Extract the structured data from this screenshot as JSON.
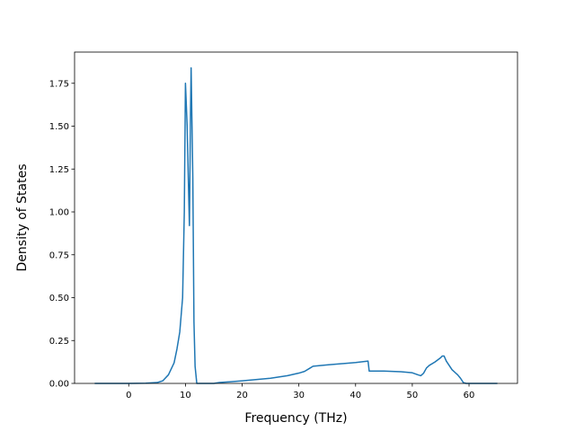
{
  "chart_data": {
    "type": "line",
    "x_label": "Frequency (THz)",
    "y_label": "Density of States",
    "color": "#1f77b4",
    "x": [
      -6,
      0,
      3,
      5,
      6,
      7,
      8,
      8.5,
      9,
      9.5,
      9.8,
      10,
      10.3,
      10.5,
      10.7,
      10.9,
      11,
      11.3,
      11.5,
      11.7,
      12,
      15,
      16,
      20,
      25,
      28,
      30,
      31,
      32,
      32.5,
      35,
      40,
      42.2,
      42.4,
      45,
      48,
      50,
      51,
      51.5,
      52,
      52.5,
      53,
      54,
      55,
      55.3,
      55.6,
      56,
      57,
      58,
      58.5,
      59,
      59.5,
      65
    ],
    "values": [
      0,
      0,
      0.001,
      0.005,
      0.015,
      0.05,
      0.12,
      0.2,
      0.3,
      0.5,
      1.0,
      1.75,
      1.5,
      1.2,
      0.92,
      1.6,
      1.84,
      1.2,
      0.36,
      0.1,
      0,
      0,
      0.005,
      0.015,
      0.03,
      0.045,
      0.06,
      0.07,
      0.09,
      0.1,
      0.108,
      0.122,
      0.13,
      0.072,
      0.072,
      0.068,
      0.062,
      0.05,
      0.045,
      0.06,
      0.09,
      0.105,
      0.125,
      0.15,
      0.16,
      0.16,
      0.13,
      0.08,
      0.05,
      0.03,
      0.005,
      0,
      0
    ],
    "xlim": [
      -9.55,
      68.55
    ],
    "ylim": [
      0,
      1.932
    ],
    "xticks": [
      0,
      10,
      20,
      30,
      40,
      50,
      60
    ],
    "yticks": [
      {
        "value": 0,
        "label": "0.00"
      },
      {
        "value": 0.25,
        "label": "0.25"
      },
      {
        "value": 0.5,
        "label": "0.50"
      },
      {
        "value": 0.75,
        "label": "0.75"
      },
      {
        "value": 1,
        "label": "1.00"
      },
      {
        "value": 1.25,
        "label": "1.25"
      },
      {
        "value": 1.5,
        "label": "1.50"
      },
      {
        "value": 1.75,
        "label": "1.75"
      }
    ]
  }
}
